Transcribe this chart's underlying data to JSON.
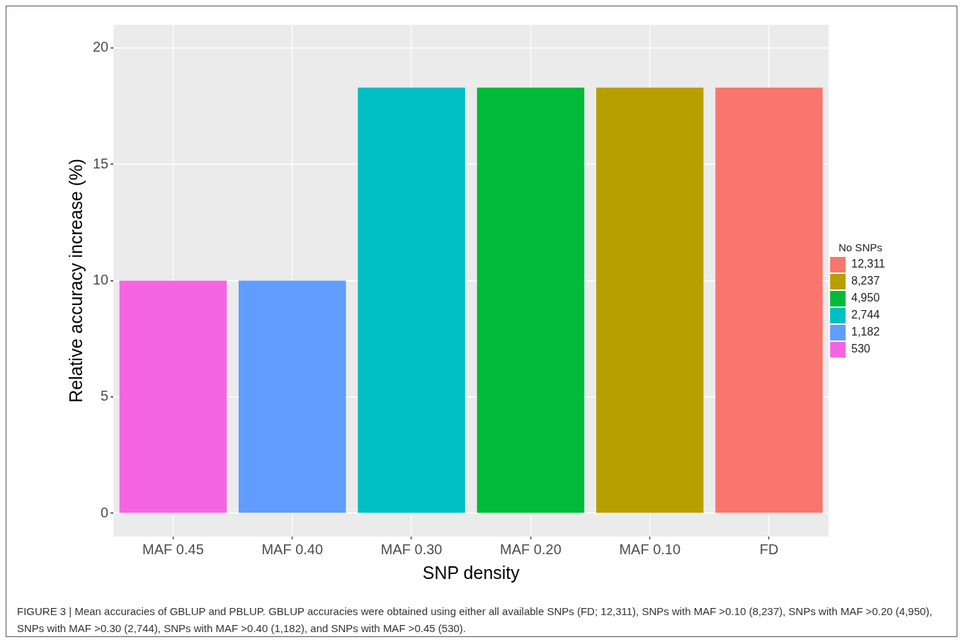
{
  "chart_data": {
    "type": "bar",
    "xlabel": "SNP density",
    "ylabel": "Relative accuracy increase (%)",
    "legend_title": "No SNPs",
    "legend": "right",
    "categories": [
      "MAF 0.45",
      "MAF 0.40",
      "MAF 0.30",
      "MAF 0.20",
      "MAF 0.10",
      "FD"
    ],
    "series": [
      {
        "name": "12,311",
        "color": "#f8766d",
        "values": [
          null,
          null,
          null,
          null,
          null,
          18.3
        ]
      },
      {
        "name": "8,237",
        "color": "#b79f00",
        "values": [
          null,
          null,
          null,
          null,
          18.3,
          null
        ]
      },
      {
        "name": "4,950",
        "color": "#00ba38",
        "values": [
          null,
          null,
          null,
          18.3,
          null,
          null
        ]
      },
      {
        "name": "2,744",
        "color": "#00bfc4",
        "values": [
          null,
          null,
          18.3,
          null,
          null,
          null
        ]
      },
      {
        "name": "1,182",
        "color": "#619cff",
        "values": [
          null,
          10,
          null,
          null,
          null,
          null
        ]
      },
      {
        "name": "530",
        "color": "#f564e3",
        "values": [
          10,
          null,
          null,
          null,
          null,
          null
        ]
      }
    ],
    "ylim": [
      -1,
      21
    ],
    "yticks": [
      0,
      5,
      10,
      15,
      20
    ],
    "grid": true,
    "annotations": [
      "FIGURE 3 | Mean accuracies of GBLUP and PBLUP. GBLUP accuracies were obtained using either all available SNPs (FD; 12,311), SNPs with MAF >0.10 (8,237), SNPs with MAF >0.20 (4,950), SNPs with MAF >0.30 (2,744), SNPs with MAF >0.40 (1,182), and SNPs with MAF >0.45 (530)."
    ]
  }
}
